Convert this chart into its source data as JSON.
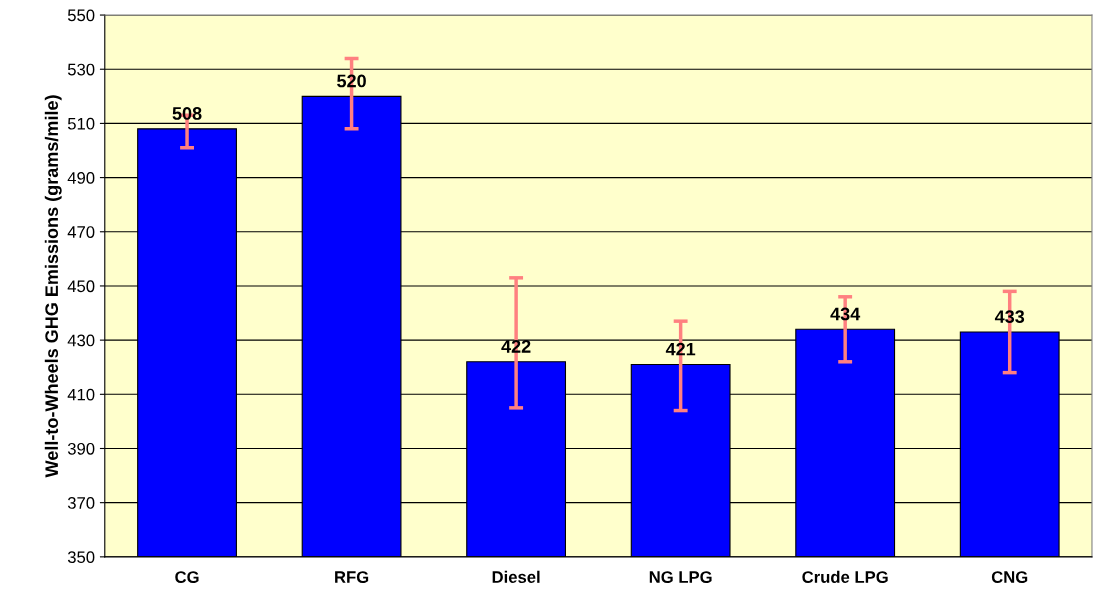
{
  "chart_data": {
    "type": "bar",
    "ylabel": "Well-to-Wheels GHG Emissions (grams/mile)",
    "categories": [
      "CG",
      "RFG",
      "Diesel",
      "NG LPG",
      "Crude LPG",
      "CNG"
    ],
    "values": [
      508,
      520,
      422,
      421,
      434,
      433
    ],
    "errors": [
      [
        501,
        513
      ],
      [
        508,
        534
      ],
      [
        405,
        453
      ],
      [
        404,
        437
      ],
      [
        422,
        446
      ],
      [
        418,
        448
      ]
    ],
    "color": "#0000ff",
    "ylim": [
      350,
      550
    ],
    "yticks": [
      350,
      370,
      390,
      410,
      430,
      450,
      470,
      490,
      510,
      530,
      550
    ],
    "grid": "y",
    "data_labels": true
  }
}
